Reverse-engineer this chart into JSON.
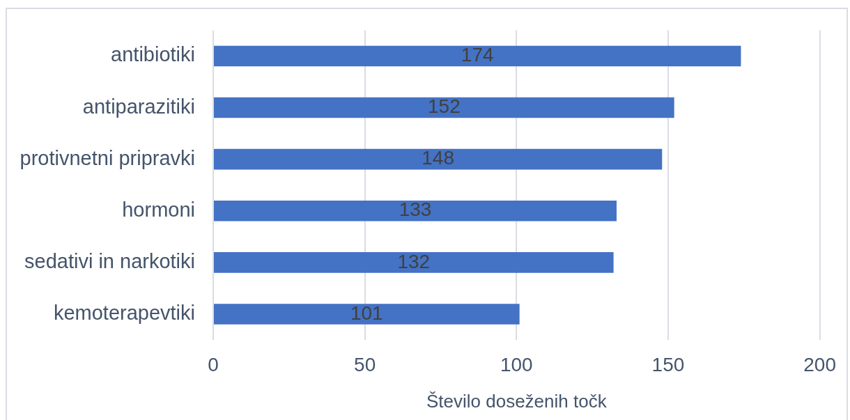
{
  "chart_data": {
    "type": "bar",
    "orientation": "horizontal",
    "categories": [
      "antibiotiki",
      "antiparazitiki",
      "protivnetni pripravki",
      "hormoni",
      "sedativi in narkotiki",
      "kemoterapevtiki"
    ],
    "values": [
      174,
      152,
      148,
      133,
      132,
      101
    ],
    "color": "#4472c4",
    "xlabel": "Število doseženih točk",
    "xlim": [
      0,
      200
    ],
    "xticks": [
      0,
      50,
      100,
      150,
      200
    ],
    "grid": "x",
    "data_labels": true,
    "legend": false
  }
}
